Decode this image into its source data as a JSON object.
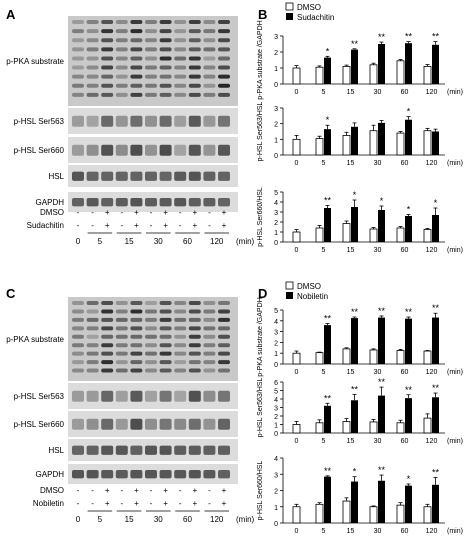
{
  "figure": {
    "panels": [
      {
        "letter": "A",
        "compound": "Sudachitin"
      },
      {
        "letter": "C",
        "compound": "Nobiletin"
      }
    ],
    "blot_labels": [
      "p-PKA substrate",
      "p-HSL Ser563",
      "p-HSL Ser660",
      "HSL",
      "GAPDH"
    ],
    "treatment_rows": {
      "dmso_label": "DMSO",
      "dmso_pattern": [
        "-",
        "-",
        "+",
        "-",
        "+",
        "-",
        "+",
        "-",
        "+",
        "-",
        "+"
      ],
      "compound_pattern": [
        "-",
        "-",
        "+",
        "-",
        "+",
        "-",
        "+",
        "-",
        "+",
        "-",
        "+"
      ]
    },
    "time_labels": [
      "0",
      "5",
      "15",
      "30",
      "60",
      "120"
    ],
    "time_unit": "(min)"
  },
  "chart_data": [
    {
      "panel": "B",
      "type": "bar",
      "legend_position": "top-left",
      "series_names": [
        "DMSO",
        "Sudachitin"
      ],
      "charts": [
        {
          "ylabel": "p-PKA substrate /GAPDH",
          "ylim": [
            0,
            3
          ],
          "yticks": [
            0,
            1,
            2,
            3
          ],
          "categories": [
            "0",
            "5",
            "15",
            "30",
            "60",
            "120"
          ],
          "xunit": "(min)",
          "series": [
            {
              "name": "DMSO",
              "values": [
                1.0,
                1.05,
                1.1,
                1.2,
                1.45,
                1.1
              ],
              "errors": [
                0.15,
                0.08,
                0.08,
                0.1,
                0.08,
                0.12
              ]
            },
            {
              "name": "Sudachitin",
              "values": [
                null,
                1.65,
                2.15,
                2.5,
                2.55,
                2.45
              ],
              "errors": [
                null,
                0.08,
                0.05,
                0.12,
                0.1,
                0.2
              ]
            }
          ],
          "significance": [
            "",
            "*",
            "**",
            "**",
            "**",
            "**"
          ]
        },
        {
          "ylabel": "p-HSL Ser563/HSL",
          "ylim": [
            0,
            3
          ],
          "yticks": [
            0,
            1,
            2,
            3
          ],
          "categories": [
            "0",
            "5",
            "15",
            "30",
            "60",
            "120"
          ],
          "xunit": "(min)",
          "series": [
            {
              "name": "DMSO",
              "values": [
                1.0,
                1.05,
                1.25,
                1.55,
                1.4,
                1.55
              ],
              "errors": [
                0.25,
                0.15,
                0.2,
                0.35,
                0.1,
                0.15
              ]
            },
            {
              "name": "Sudachitin",
              "values": [
                null,
                1.65,
                1.8,
                2.05,
                2.25,
                1.5
              ],
              "errors": [
                null,
                0.25,
                0.25,
                0.15,
                0.2,
                0.15
              ]
            }
          ],
          "significance": [
            "",
            "*",
            "",
            "",
            "*",
            ""
          ]
        },
        {
          "ylabel": "p-HSL Ser660/HSL",
          "ylim": [
            0,
            5
          ],
          "yticks": [
            0,
            1,
            2,
            3,
            4,
            5
          ],
          "categories": [
            "0",
            "5",
            "15",
            "30",
            "60",
            "120"
          ],
          "xunit": "(min)",
          "series": [
            {
              "name": "DMSO",
              "values": [
                1.0,
                1.4,
                1.85,
                1.3,
                1.4,
                1.25
              ],
              "errors": [
                0.25,
                0.25,
                0.25,
                0.15,
                0.15,
                0.1
              ]
            },
            {
              "name": "Sudachitin",
              "values": [
                null,
                3.4,
                3.5,
                3.2,
                2.6,
                2.7
              ],
              "errors": [
                null,
                0.25,
                0.7,
                0.4,
                0.15,
                0.7
              ]
            }
          ],
          "significance": [
            "",
            "**",
            "*",
            "*",
            "*",
            "*"
          ]
        }
      ]
    },
    {
      "panel": "D",
      "type": "bar",
      "legend_position": "top-left",
      "series_names": [
        "DMSO",
        "Nobiletin"
      ],
      "charts": [
        {
          "ylabel": "p-PKA substrate /GAPDH",
          "ylim": [
            0,
            5
          ],
          "yticks": [
            0,
            1,
            2,
            3,
            4,
            5
          ],
          "categories": [
            "0",
            "5",
            "15",
            "30",
            "60",
            "120"
          ],
          "xunit": "(min)",
          "series": [
            {
              "name": "DMSO",
              "values": [
                1.0,
                1.05,
                1.4,
                1.3,
                1.25,
                1.2
              ],
              "errors": [
                0.2,
                0.05,
                0.1,
                0.1,
                0.1,
                0.05
              ]
            },
            {
              "name": "Nobiletin",
              "values": [
                null,
                3.6,
                4.25,
                4.3,
                4.2,
                4.3
              ],
              "errors": [
                null,
                0.15,
                0.1,
                0.15,
                0.15,
                0.4
              ]
            }
          ],
          "significance": [
            "",
            "**",
            "**",
            "**",
            "**",
            "**"
          ]
        },
        {
          "ylabel": "p-HSL Ser563/HSL",
          "ylim": [
            0,
            6
          ],
          "yticks": [
            0,
            1,
            2,
            3,
            4,
            5,
            6
          ],
          "categories": [
            "0",
            "5",
            "15",
            "30",
            "60",
            "120"
          ],
          "xunit": "(min)",
          "series": [
            {
              "name": "DMSO",
              "values": [
                1.0,
                1.2,
                1.35,
                1.3,
                1.2,
                1.75
              ],
              "errors": [
                0.35,
                0.35,
                0.35,
                0.3,
                0.3,
                0.5
              ]
            },
            {
              "name": "Nobiletin",
              "values": [
                null,
                3.2,
                3.85,
                4.4,
                4.1,
                4.2
              ],
              "errors": [
                null,
                0.3,
                0.7,
                1.0,
                0.4,
                0.5
              ]
            }
          ],
          "significance": [
            "",
            "**",
            "**",
            "**",
            "**",
            "**"
          ]
        },
        {
          "ylabel": "p-HSL Ser660/HSL",
          "ylim": [
            0,
            4
          ],
          "yticks": [
            0,
            1,
            2,
            3,
            4
          ],
          "categories": [
            "0",
            "5",
            "15",
            "30",
            "60",
            "120"
          ],
          "xunit": "(min)",
          "series": [
            {
              "name": "DMSO",
              "values": [
                1.0,
                1.15,
                1.35,
                1.0,
                1.1,
                1.0
              ],
              "errors": [
                0.15,
                0.1,
                0.2,
                0.05,
                0.15,
                0.15
              ]
            },
            {
              "name": "Nobiletin",
              "values": [
                null,
                2.85,
                2.55,
                2.6,
                2.3,
                2.35
              ],
              "errors": [
                null,
                0.05,
                0.3,
                0.35,
                0.1,
                0.45
              ]
            }
          ],
          "significance": [
            "",
            "**",
            "*",
            "**",
            "*",
            "**"
          ]
        }
      ]
    }
  ]
}
